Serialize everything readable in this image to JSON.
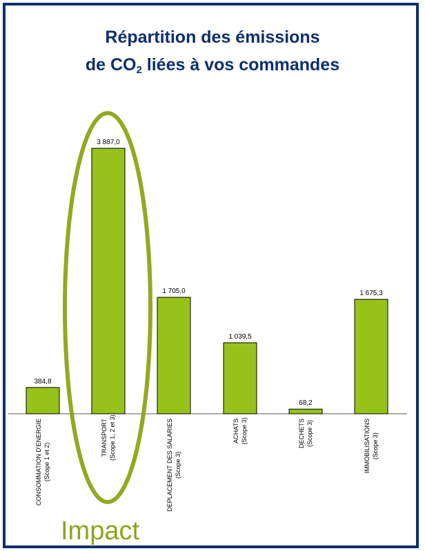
{
  "title": {
    "line1": "Répartition des émissions",
    "line2_pre": "de CO",
    "line2_sub": "2",
    "line2_post": " liées à vos commandes"
  },
  "annotation": {
    "text": "Impact",
    "color": "#8aa61e",
    "highlighted_category": "TRANSPORT"
  },
  "colors": {
    "bar": "#97c21a",
    "bar_border": "#000000",
    "frame": "#0d2f6e",
    "title": "#0d2f6e",
    "ellipse": "#94a820"
  },
  "chart_data": {
    "type": "bar",
    "title": "Répartition des émissions de CO2 liées à vos commandes",
    "xlabel": "",
    "ylabel": "",
    "ylim": [
      0,
      4000
    ],
    "grid": false,
    "categories": [
      {
        "name": "CONSOMMATION D'ENERGIE",
        "scope": "(Scope 1 et 2)"
      },
      {
        "name": "TRANSPORT",
        "scope": "(Scope 1, 2 et 3)"
      },
      {
        "name": "DEPLACEMENT DES SALARIES",
        "scope": "(Scope 3)"
      },
      {
        "name": "ACHATS",
        "scope": "(Scope 3)"
      },
      {
        "name": "DECHETS",
        "scope": "(Scope 3)"
      },
      {
        "name": "IMMOBILISATIONS",
        "scope": "(Scope 3)"
      }
    ],
    "values": [
      384.8,
      3887.0,
      1705.0,
      1039.5,
      68.2,
      1675.3
    ],
    "value_labels": [
      "384,8",
      "3 887,0",
      "1 705,0",
      "1 039,5",
      "68,2",
      "1 675,3"
    ]
  }
}
